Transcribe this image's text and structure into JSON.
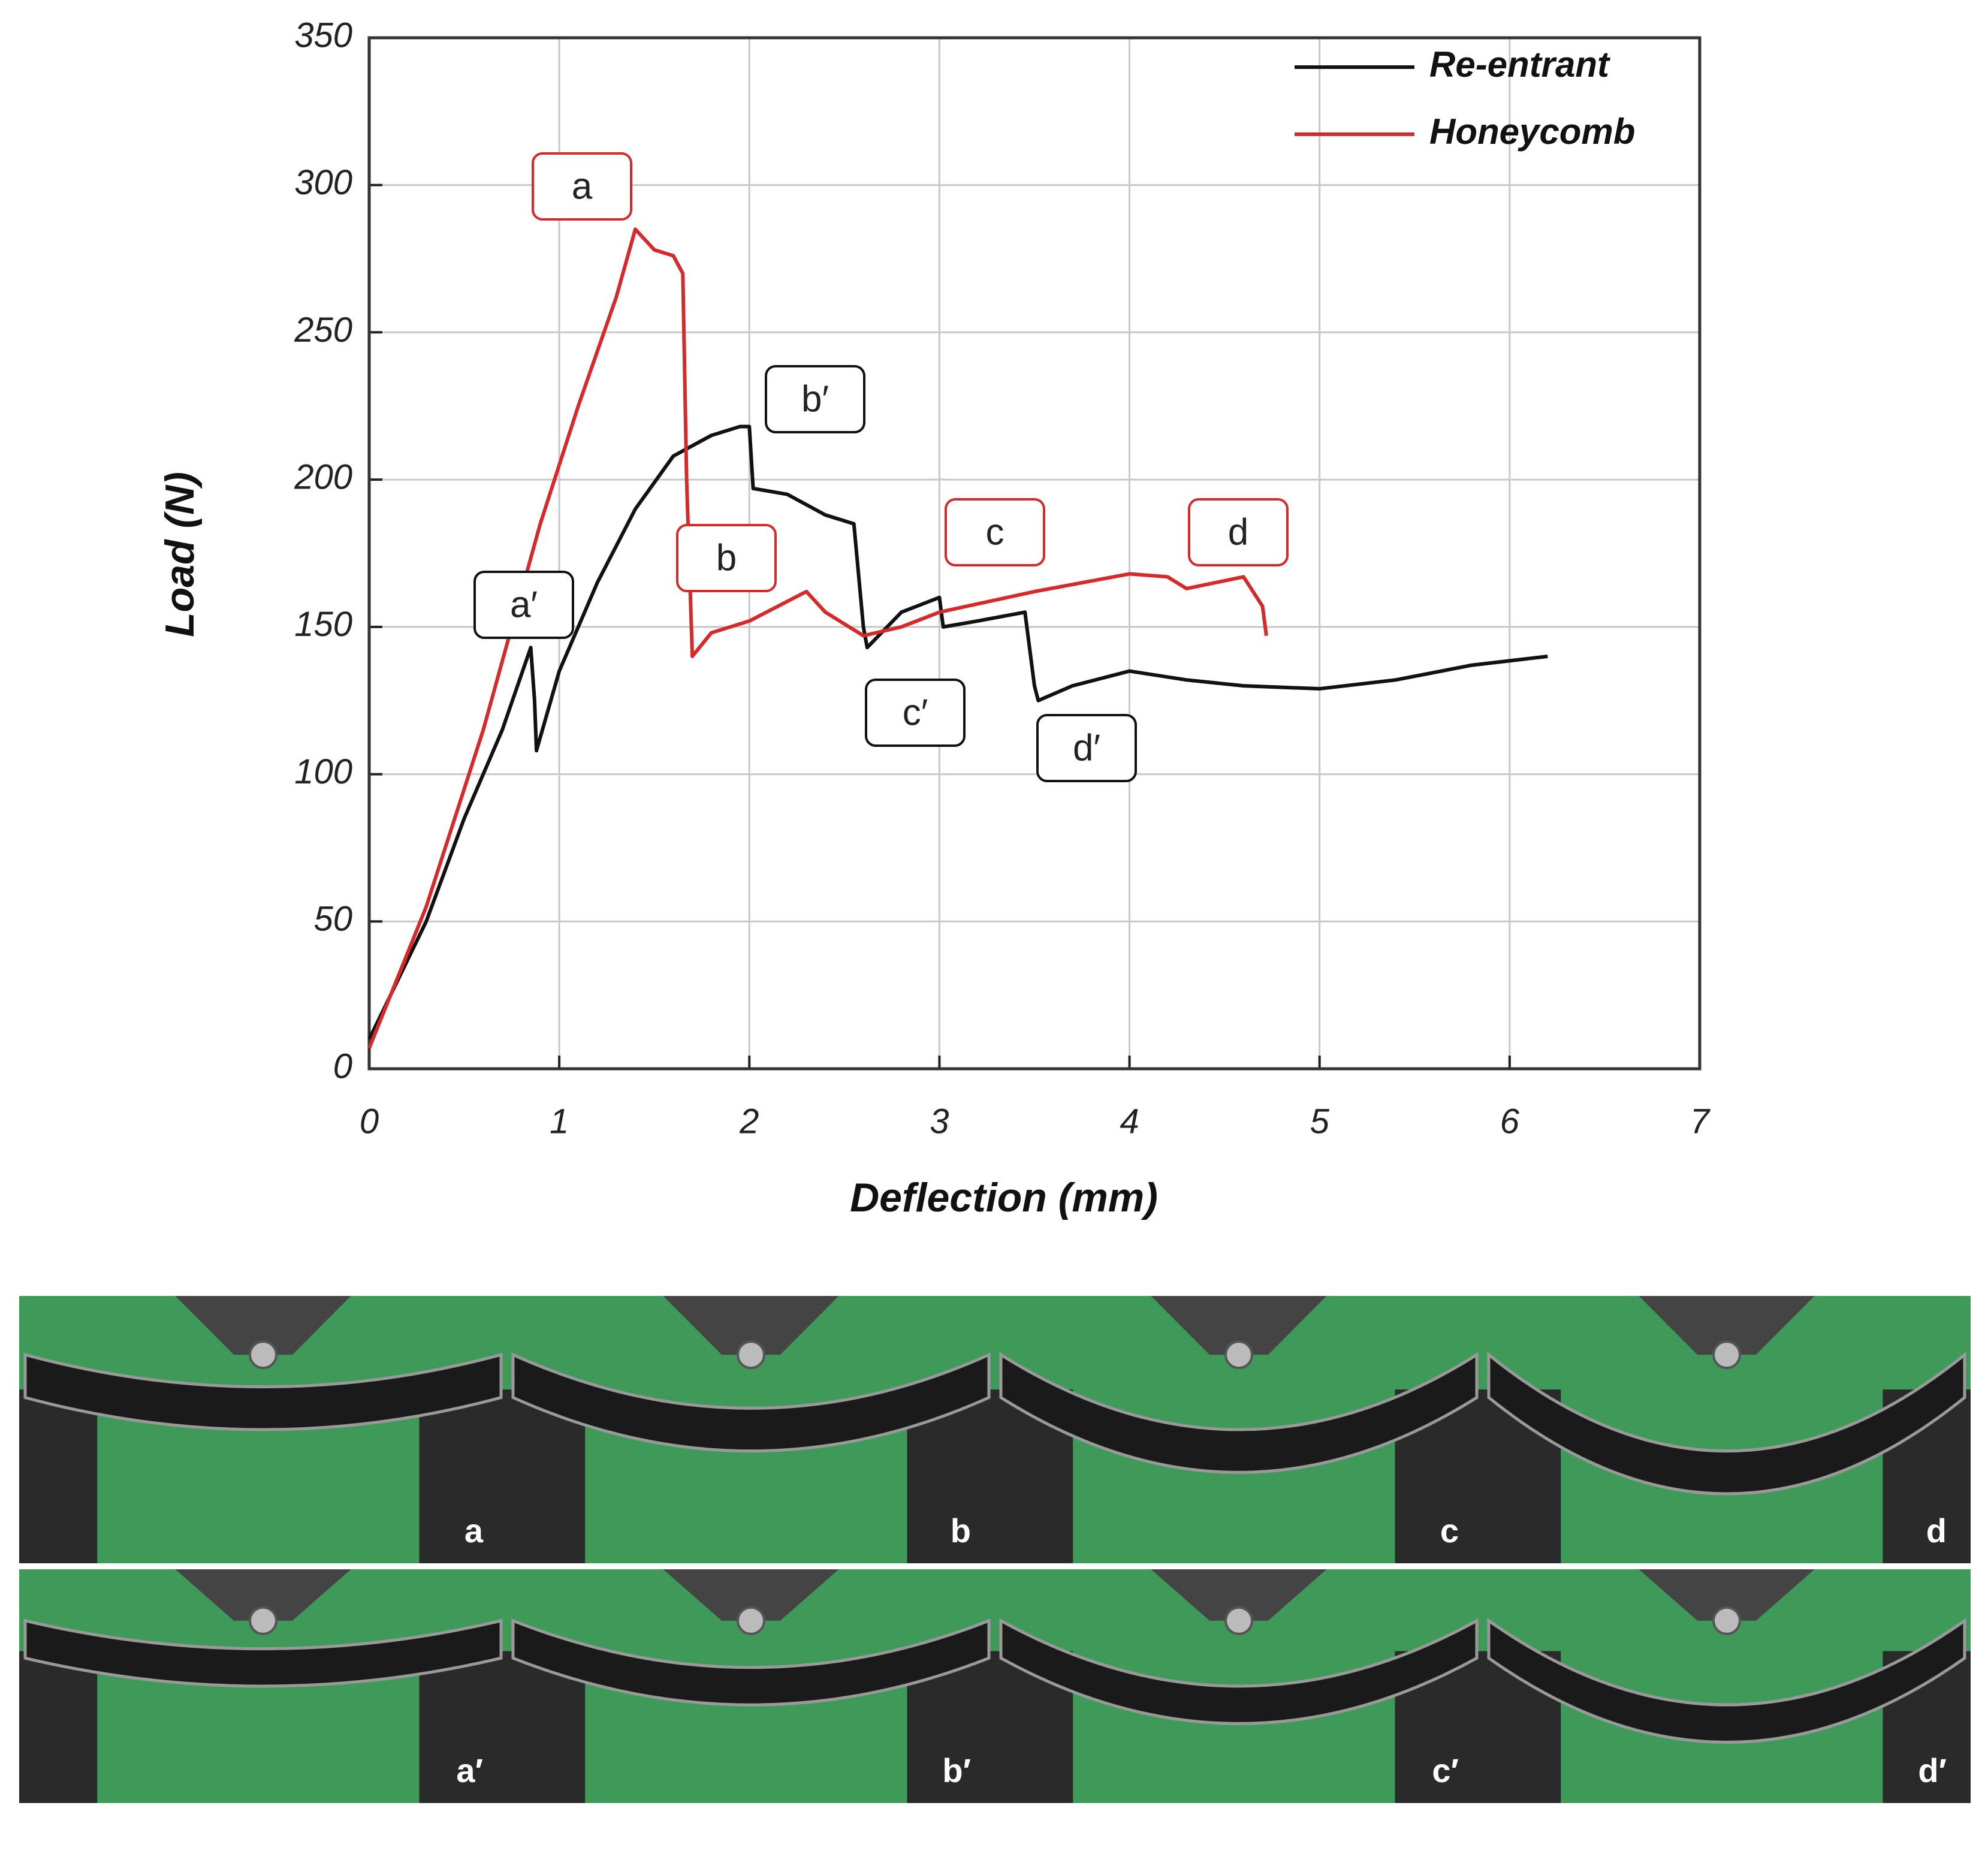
{
  "chart_data": {
    "type": "line",
    "x_label": "Deflection (mm)",
    "y_label": "Load (N)",
    "xlim": [
      0,
      7
    ],
    "xticks": [
      0,
      1,
      2,
      3,
      4,
      5,
      6,
      7
    ],
    "ylim": [
      0,
      350
    ],
    "yticks": [
      0,
      50,
      100,
      150,
      200,
      250,
      300,
      350
    ],
    "grid": true,
    "legend": "upper right",
    "series": [
      {
        "name": "Re-entrant",
        "color": "#111111",
        "x": [
          0,
          0.3,
          0.5,
          0.7,
          0.85,
          0.87,
          0.88,
          1.0,
          1.2,
          1.4,
          1.6,
          1.8,
          1.95,
          2.0,
          2.02,
          2.2,
          2.4,
          2.55,
          2.6,
          2.62,
          2.8,
          3.0,
          3.02,
          3.2,
          3.45,
          3.5,
          3.52,
          3.7,
          4.0,
          4.3,
          4.6,
          5.0,
          5.4,
          5.8,
          6.2
        ],
        "values": [
          10,
          50,
          85,
          115,
          143,
          125,
          108,
          135,
          165,
          190,
          208,
          215,
          218,
          218,
          197,
          195,
          188,
          185,
          150,
          143,
          155,
          160,
          150,
          152,
          155,
          130,
          125,
          130,
          135,
          132,
          130,
          129,
          132,
          137,
          140
        ]
      },
      {
        "name": "Honeycomb",
        "color": "#d42a2a",
        "x": [
          0,
          0.3,
          0.6,
          0.9,
          1.1,
          1.3,
          1.4,
          1.5,
          1.6,
          1.65,
          1.67,
          1.7,
          1.8,
          2.0,
          2.3,
          2.4,
          2.6,
          2.8,
          3.0,
          3.5,
          4.0,
          4.2,
          4.3,
          4.6,
          4.7,
          4.72
        ],
        "values": [
          7,
          55,
          115,
          185,
          225,
          262,
          285,
          278,
          276,
          270,
          200,
          140,
          148,
          152,
          162,
          155,
          147,
          150,
          155,
          162,
          168,
          167,
          163,
          167,
          157,
          147
        ]
      }
    ],
    "annotations": [
      {
        "text": "a",
        "series": 1
      },
      {
        "text": "b",
        "series": 1
      },
      {
        "text": "c",
        "series": 1
      },
      {
        "text": "d",
        "series": 1
      },
      {
        "text": "a′",
        "series": 0
      },
      {
        "text": "b′",
        "series": 0
      },
      {
        "text": "c′",
        "series": 0
      },
      {
        "text": "d′",
        "series": 0
      }
    ]
  },
  "photos": {
    "labels": [
      "a",
      "b",
      "c",
      "d",
      "a′",
      "b′",
      "c′",
      "d′"
    ]
  }
}
